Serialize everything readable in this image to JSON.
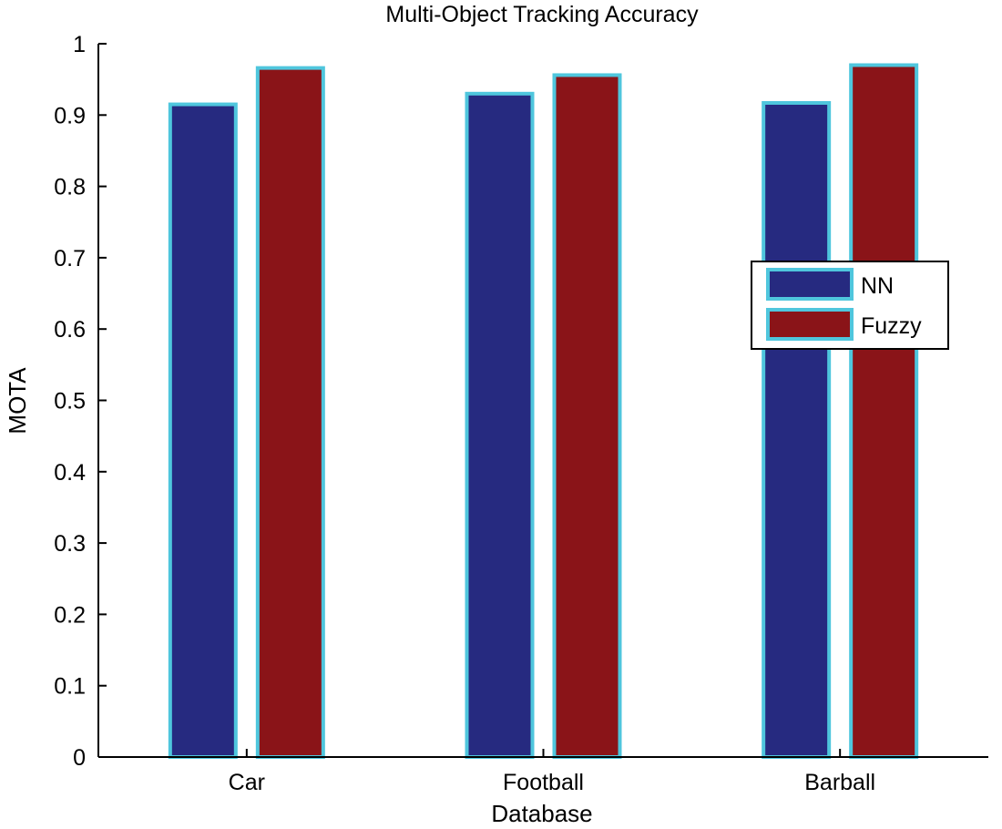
{
  "chart_data": {
    "type": "bar",
    "title": "Multi-Object Tracking Accuracy",
    "xlabel": "Database",
    "ylabel": "MOTA",
    "categories": [
      "Car",
      "Football",
      "Barball"
    ],
    "series": [
      {
        "name": "NN",
        "values": [
          0.915,
          0.93,
          0.917
        ],
        "color": "#262a80"
      },
      {
        "name": "Fuzzy",
        "values": [
          0.966,
          0.956,
          0.97
        ],
        "color": "#8a1418"
      }
    ],
    "bar_edge_color": "#4fc6dd",
    "ylim": [
      0,
      1
    ],
    "yticks": [
      "0",
      "0.1",
      "0.2",
      "0.3",
      "0.4",
      "0.5",
      "0.6",
      "0.7",
      "0.8",
      "0.9",
      "1"
    ],
    "grid": false,
    "legend_position": "right"
  }
}
